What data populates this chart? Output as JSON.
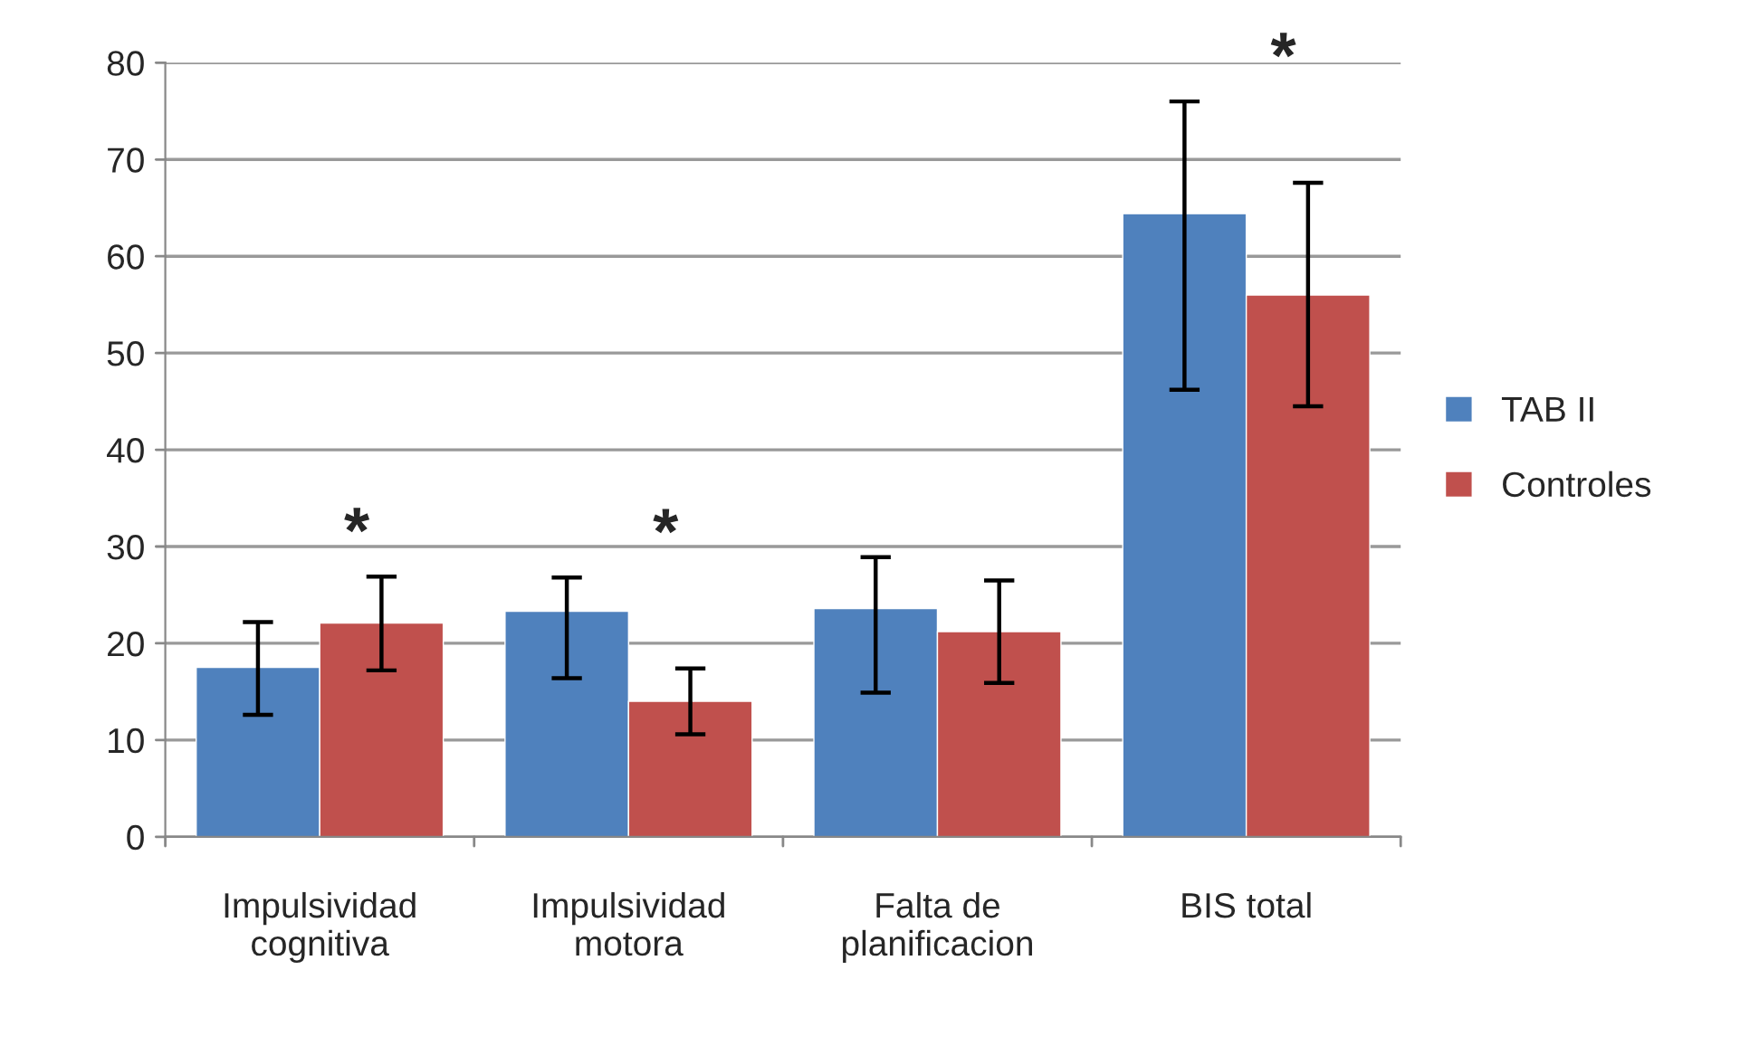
{
  "chart_data": {
    "type": "bar",
    "categories": [
      "Impulsividad\ncognitiva",
      "Impulsividad\nmotora",
      "Falta de\nplanificacion",
      "BIS total"
    ],
    "series": [
      {
        "name": "TAB II",
        "color": "#4f81bd",
        "values": [
          17.5,
          23.3,
          23.6,
          64.4
        ],
        "errors": [
          [
            12.6,
            22.2
          ],
          [
            16.4,
            26.8
          ],
          [
            14.9,
            28.9
          ],
          [
            46.2,
            76.0
          ]
        ]
      },
      {
        "name": "Controles",
        "color": "#c0504d",
        "values": [
          22.1,
          14.0,
          21.2,
          56.0
        ],
        "errors": [
          [
            17.2,
            26.9
          ],
          [
            10.6,
            17.4
          ],
          [
            15.9,
            26.5
          ],
          [
            44.5,
            67.6
          ]
        ]
      }
    ],
    "annotations": [
      "*",
      "*",
      "*"
    ],
    "ylim": [
      0,
      80
    ],
    "yticks": [
      0,
      10,
      20,
      30,
      40,
      50,
      60,
      70,
      80
    ],
    "grid": "y",
    "legend": "right"
  }
}
